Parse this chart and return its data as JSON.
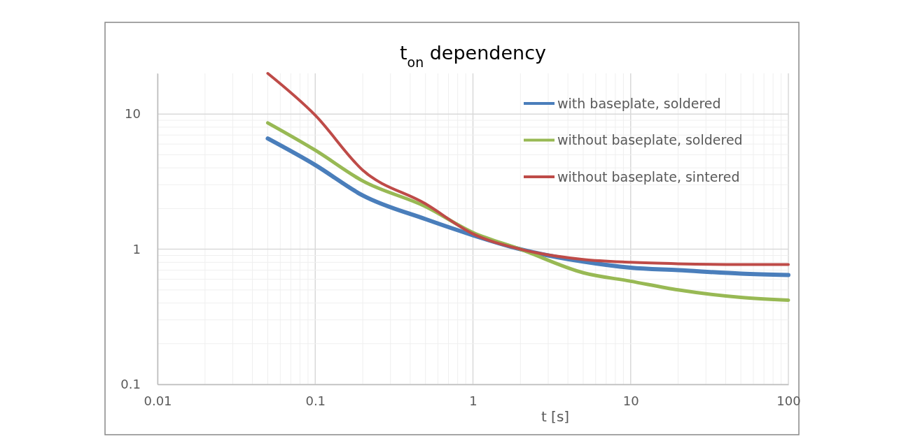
{
  "chart_data": {
    "type": "line",
    "title": "t$_{on}$ dependency",
    "xlabel": "t [s]",
    "log": "xy",
    "grid": true,
    "legend": "top right",
    "line_style": "solid",
    "marker": "none",
    "xlim": [
      0.01,
      100
    ],
    "ylim": [
      0.1,
      20
    ],
    "xticks": [
      0.01,
      {
        "value": 0.02,
        "label": null
      },
      {
        "value": 0.03,
        "label": null
      },
      {
        "value": 0.04,
        "label": null
      },
      {
        "value": 0.05,
        "label": null
      },
      {
        "value": 0.06,
        "label": null
      },
      {
        "value": 0.07,
        "label": null
      },
      {
        "value": 0.08,
        "label": null
      },
      {
        "value": 0.09,
        "label": null
      },
      0.1,
      {
        "value": 0.2,
        "label": null
      },
      {
        "value": 0.3,
        "label": null
      },
      {
        "value": 0.4,
        "label": null
      },
      {
        "value": 0.5,
        "label": null
      },
      {
        "value": 0.6,
        "label": null
      },
      {
        "value": 0.7,
        "label": null
      },
      {
        "value": 0.8,
        "label": null
      },
      {
        "value": 0.9,
        "label": null
      },
      1,
      {
        "value": 2,
        "label": null
      },
      {
        "value": 3,
        "label": null
      },
      {
        "value": 4,
        "label": null
      },
      {
        "value": 5,
        "label": null
      },
      {
        "value": 6,
        "label": null
      },
      {
        "value": 7,
        "label": null
      },
      {
        "value": 8,
        "label": null
      },
      {
        "value": 9,
        "label": null
      },
      10,
      {
        "value": 20,
        "label": null
      },
      {
        "value": 30,
        "label": null
      },
      {
        "value": 40,
        "label": null
      },
      {
        "value": 50,
        "label": null
      },
      {
        "value": 60,
        "label": null
      },
      {
        "value": 70,
        "label": null
      },
      {
        "value": 80,
        "label": null
      },
      {
        "value": 90,
        "label": null
      },
      100
    ],
    "yticks": [
      0.1,
      {
        "value": 0.2,
        "label": null
      },
      {
        "value": 0.3,
        "label": null
      },
      {
        "value": 0.4,
        "label": null
      },
      {
        "value": 0.5,
        "label": null
      },
      {
        "value": 0.6,
        "label": null
      },
      {
        "value": 0.7,
        "label": null
      },
      {
        "value": 0.8,
        "label": null
      },
      {
        "value": 0.9,
        "label": null
      },
      1,
      {
        "value": 2,
        "label": null
      },
      {
        "value": 3,
        "label": null
      },
      {
        "value": 4,
        "label": null
      },
      {
        "value": 5,
        "label": null
      },
      {
        "value": 6,
        "label": null
      },
      {
        "value": 7,
        "label": null
      },
      {
        "value": 8,
        "label": null
      },
      {
        "value": 9,
        "label": null
      },
      10
    ],
    "x": [
      0.05,
      0.1,
      0.2,
      0.5,
      1,
      2,
      5,
      10,
      20,
      50,
      100
    ],
    "series": [
      {
        "name": "with baseplate, soldered",
        "color": "#4a7ebb",
        "values": [
          6.6,
          4.2,
          2.5,
          1.67,
          1.27,
          1.0,
          0.81,
          0.73,
          0.7,
          0.66,
          0.645
        ]
      },
      {
        "name": "without baseplate, soldered",
        "color": "#98b954",
        "values": [
          8.6,
          5.4,
          3.2,
          2.07,
          1.33,
          1.0,
          0.67,
          0.58,
          0.5,
          0.44,
          0.42
        ]
      },
      {
        "name": "without baseplate, sintered",
        "color": "#be4b48",
        "values": [
          20,
          9.8,
          3.85,
          2.17,
          1.3,
          1.0,
          0.84,
          0.8,
          0.78,
          0.77,
          0.77
        ]
      }
    ]
  }
}
